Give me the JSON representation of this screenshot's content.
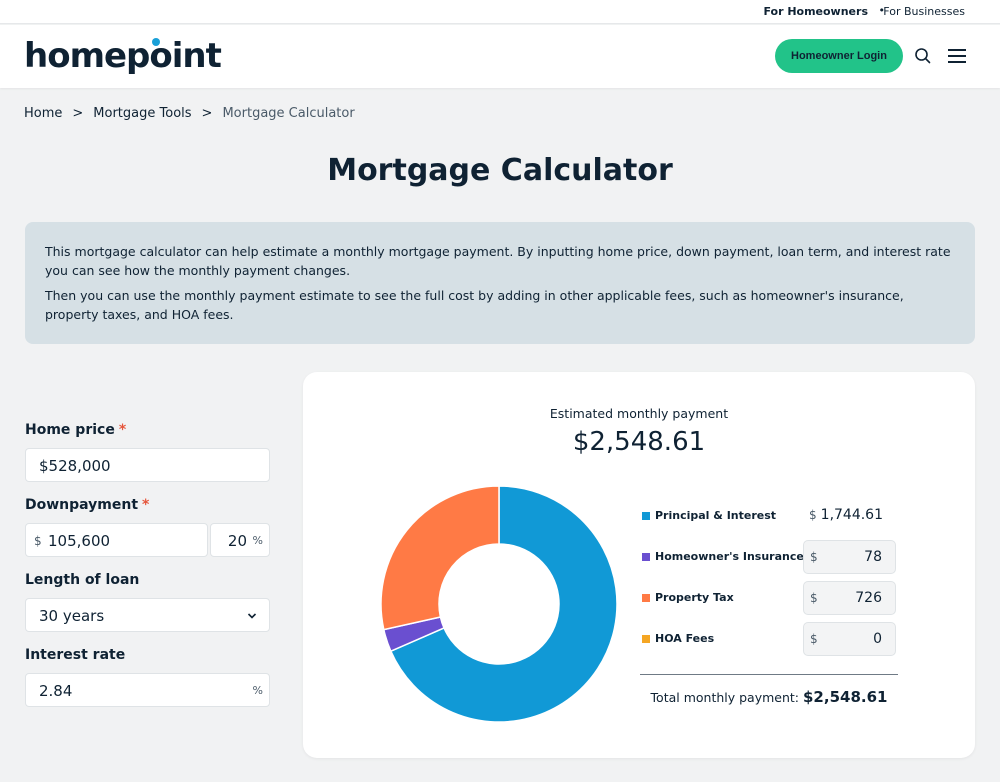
{
  "utility": {
    "for_homeowners": "For Homeowners",
    "separator": "•",
    "for_businesses": "For Businesses"
  },
  "header": {
    "logo": "homepoint",
    "login_button": "Homeowner Login",
    "search_icon": "search-icon",
    "menu_icon": "hamburger-menu-icon"
  },
  "breadcrumb": {
    "items": [
      "Home",
      "Mortgage Tools",
      "Mortgage Calculator"
    ],
    "separator": ">"
  },
  "page": {
    "title": "Mortgage Calculator",
    "intro": [
      "This mortgage calculator can help estimate a monthly mortgage payment. By inputting home price, down payment, loan term, and interest rate you can see how the monthly payment changes.",
      "Then you can use the monthly payment estimate to see the full cost by adding in other applicable fees, such as homeowner's insurance, property taxes, and HOA fees."
    ]
  },
  "form": {
    "home_price": {
      "label": "Home price",
      "required": "*",
      "value": "$528,000"
    },
    "downpayment": {
      "label": "Downpayment",
      "required": "*",
      "prefix": "$",
      "amount": "105,600",
      "percent": "20",
      "percent_suffix": "%"
    },
    "loan_length": {
      "label": "Length of loan",
      "value": "30 years"
    },
    "interest_rate": {
      "label": "Interest rate",
      "value": "2.84",
      "suffix": "%"
    }
  },
  "result": {
    "estimated_label": "Estimated monthly payment",
    "estimated_value": "$2,548.61",
    "breakdown": [
      {
        "name": "Principal & Interest",
        "currency": "$",
        "amount": "1,744.61",
        "value": 1744.61,
        "color": "#1199d6",
        "editable": false
      },
      {
        "name": "Homeowner's Insurance",
        "currency": "$",
        "amount": "78",
        "value": 78,
        "color": "#6a4fd0",
        "editable": true
      },
      {
        "name": "Property Tax",
        "currency": "$",
        "amount": "726",
        "value": 726,
        "color": "#ff7a45",
        "editable": true
      },
      {
        "name": "HOA Fees",
        "currency": "$",
        "amount": "0",
        "value": 0,
        "color": "#f5a623",
        "editable": true
      }
    ],
    "total_label": "Total monthly payment:",
    "total_value": "$2,548.61"
  }
}
